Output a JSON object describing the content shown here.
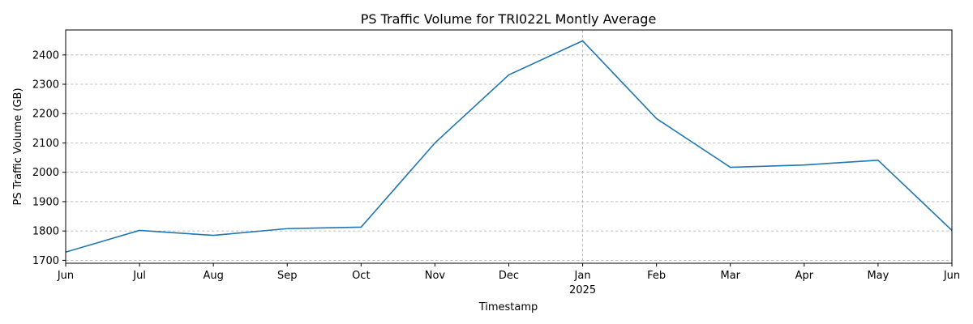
{
  "chart_data": {
    "type": "line",
    "title": "PS Traffic Volume for TRI022L Montly Average",
    "xlabel": "Timestamp",
    "ylabel": "PS Traffic Volume (GB)",
    "x": [
      "Jun",
      "Jul",
      "Aug",
      "Sep",
      "Oct",
      "Nov",
      "Dec",
      "Jan",
      "Feb",
      "Mar",
      "Apr",
      "May",
      "Jun"
    ],
    "x_year_label": "2025",
    "x_year_label_at": "Jan",
    "series": [
      {
        "values": [
          1728,
          1802,
          1785,
          1808,
          1813,
          2100,
          2332,
          2448,
          2183,
          2017,
          2025,
          2041,
          1802
        ]
      }
    ],
    "ylim": [
      1690,
      2485
    ],
    "yticks": [
      1700,
      1800,
      1900,
      2000,
      2100,
      2200,
      2300,
      2400
    ],
    "grid": true,
    "line_color": "#1f77b4"
  }
}
